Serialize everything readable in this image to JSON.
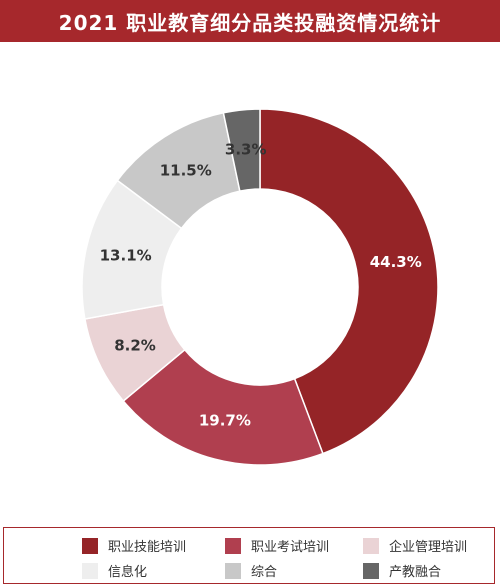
{
  "header": {
    "title": "2021 职业教育细分品类投融资情况统计"
  },
  "colors": {
    "title_bg": "#a6282c",
    "legend_border": "#a6282c"
  },
  "chart_data": {
    "type": "pie",
    "variant": "donut",
    "start_angle_deg": 0,
    "direction": "clockwise",
    "slices": [
      {
        "name": "职业技能培训",
        "value": 44.3,
        "label": "44.3%",
        "color": "#952427",
        "label_color": "#ffffff"
      },
      {
        "name": "职业考试培训",
        "value": 19.7,
        "label": "19.7%",
        "color": "#b03f4f",
        "label_color": "#ffffff"
      },
      {
        "name": "企业管理培训",
        "value": 8.2,
        "label": "8.2%",
        "color": "#ead3d5",
        "label_color": "#333333"
      },
      {
        "name": "信息化",
        "value": 13.1,
        "label": "13.1%",
        "color": "#eeeeee",
        "label_color": "#333333"
      },
      {
        "name": "综合",
        "value": 11.5,
        "label": "11.5%",
        "color": "#c8c8c8",
        "label_color": "#333333"
      },
      {
        "name": "产教融合",
        "value": 3.3,
        "label": "3.3%",
        "color": "#666666",
        "label_color": "#333333"
      }
    ],
    "legend": {
      "position": "bottom",
      "items": [
        "职业技能培训",
        "职业考试培训",
        "企业管理培训",
        "信息化",
        "综合",
        "产教融合"
      ]
    }
  }
}
